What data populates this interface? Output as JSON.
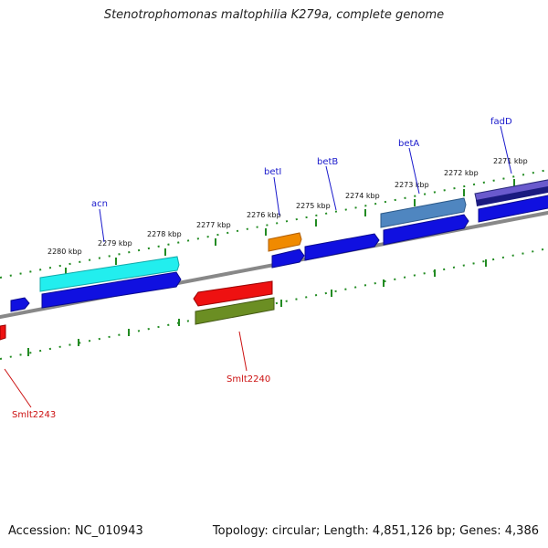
{
  "title": "Stenotrophomonas maltophilia K279a, complete genome",
  "footer": {
    "accession": "Accession: NC_010943",
    "summary": "Topology: circular; Length: 4,851,126 bp; Genes: 4,386"
  },
  "scale_labels": [
    "2280 kbp",
    "2279 kbp",
    "2278 kbp",
    "2277 kbp",
    "2276 kbp",
    "2275 kbp",
    "2274 kbp",
    "2273 kbp",
    "2272 kbp",
    "2271 kbp"
  ],
  "gene_labels": {
    "acn": "acn",
    "betI": "betI",
    "betB": "betB",
    "betA": "betA",
    "fadD": "fadD",
    "smlt2240": "Smlt2240",
    "smlt2243": "Smlt2243"
  },
  "colors": {
    "backbone": "#808080",
    "tick": "#228b22",
    "cds_blue": "#1010e0",
    "cyan": "#22eeee",
    "orange": "#f08a00",
    "red": "#ee1111",
    "olive": "#6b8e23",
    "steel": "#4f86c0",
    "slate": "#6a5acd"
  }
}
